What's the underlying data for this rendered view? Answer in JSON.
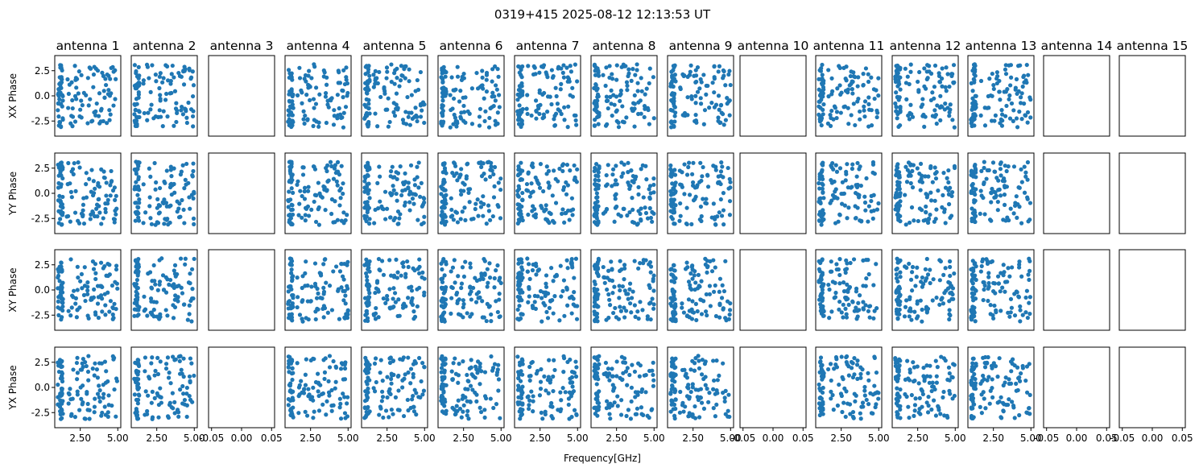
{
  "chart_data": {
    "type": "scatter",
    "title": "0319+415 2025-08-12 12:13:53 UT",
    "xlabel": "Frequency[GHz]",
    "antennas": [
      "antenna 1",
      "antenna 2",
      "antenna 3",
      "antenna 4",
      "antenna 5",
      "antenna 6",
      "antenna 7",
      "antenna 8",
      "antenna 9",
      "antenna 10",
      "antenna 11",
      "antenna 12",
      "antenna 13",
      "antenna 14",
      "antenna 15"
    ],
    "rows": [
      "XX Phase",
      "YY Phase",
      "XY Phase",
      "YX Phase"
    ],
    "empty_antennas": [
      "antenna 3",
      "antenna 10",
      "antenna 14",
      "antenna 15"
    ],
    "xlim": [
      0.8,
      5.2
    ],
    "ylim": [
      -4.0,
      4.0
    ],
    "xticks": [
      2.5,
      5.0
    ],
    "xtick_labels": [
      "2.50",
      "5.00"
    ],
    "yticks": [
      -2.5,
      0.0,
      2.5
    ],
    "ytick_labels": [
      "-2.5",
      "0.0",
      "2.5"
    ],
    "empty_xticks": [
      -0.05,
      0.0,
      0.05
    ],
    "empty_xtick_labels": [
      "-0.05",
      "0.00",
      "0.05"
    ],
    "series_color": "#1f77b4",
    "points_per_panel": 120,
    "freq_range_ghz": [
      1.0,
      5.0
    ],
    "phase_range_rad": [
      -3.14,
      3.14
    ],
    "grid": false,
    "legend": "none"
  }
}
